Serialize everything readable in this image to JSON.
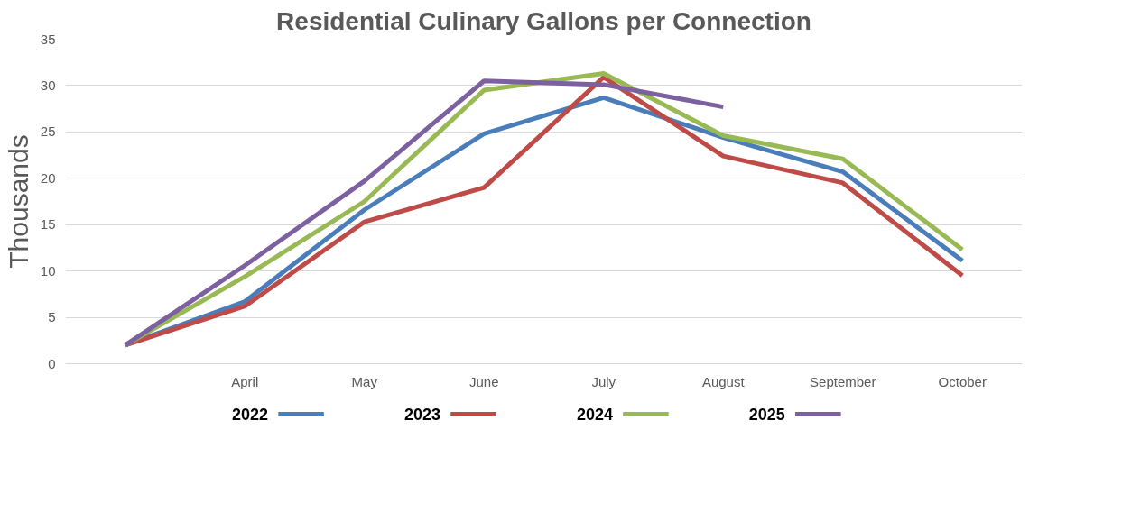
{
  "chart_data": {
    "type": "line",
    "title": "Residential Culinary Gallons per Connection",
    "ylabel": "Thousands",
    "categories": [
      null,
      "April",
      "May",
      "June",
      "July",
      "August",
      "September",
      "October"
    ],
    "series": [
      {
        "name": "2022",
        "color": "#4a7ebb",
        "values": [
          2,
          6.7,
          16.6,
          24.8,
          28.7,
          24.4,
          20.7,
          11.1
        ]
      },
      {
        "name": "2023",
        "color": "#be4b48",
        "values": [
          2,
          6.2,
          15.3,
          19.0,
          30.9,
          22.4,
          19.5,
          9.5
        ]
      },
      {
        "name": "2024",
        "color": "#98b954",
        "values": [
          2,
          9.4,
          17.5,
          29.5,
          31.3,
          24.6,
          22.1,
          12.3
        ]
      },
      {
        "name": "2025",
        "color": "#7d60a0",
        "values": [
          2,
          10.6,
          19.7,
          30.5,
          30.1,
          27.7,
          null,
          null
        ]
      }
    ],
    "ylim": [
      0,
      35
    ],
    "yticks": [
      0,
      5,
      10,
      15,
      20,
      25,
      30,
      35
    ],
    "grid": "y",
    "legend": "bottom",
    "marker": "none",
    "line_style": "solid"
  }
}
